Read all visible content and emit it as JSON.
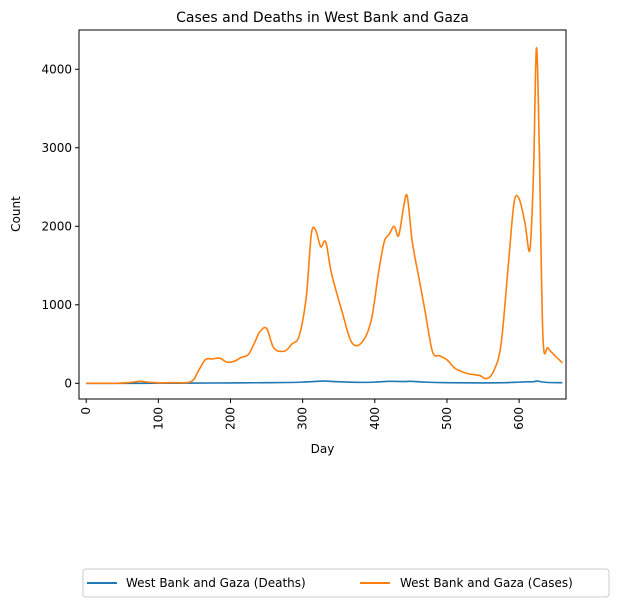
{
  "chart_data": {
    "type": "line",
    "title": "Cases and Deaths in West Bank and Gaza",
    "xlabel": "Day",
    "ylabel": "Count",
    "xlim": [
      -10,
      665
    ],
    "ylim": [
      -200,
      4500
    ],
    "xticks": [
      0,
      100,
      200,
      300,
      400,
      500,
      600
    ],
    "yticks": [
      0,
      1000,
      2000,
      3000,
      4000
    ],
    "grid": false,
    "legend": "bottom-center",
    "series": [
      {
        "name": "West Bank and Gaza (Deaths)",
        "color": "#1f77b4",
        "x": [
          0,
          50,
          100,
          150,
          200,
          250,
          280,
          300,
          320,
          330,
          350,
          375,
          400,
          420,
          440,
          450,
          470,
          500,
          550,
          580,
          600,
          610,
          620,
          625,
          630,
          640,
          660
        ],
        "y": [
          0,
          0,
          1,
          3,
          5,
          8,
          10,
          15,
          25,
          28,
          20,
          12,
          15,
          25,
          22,
          25,
          15,
          8,
          5,
          8,
          15,
          18,
          20,
          30,
          20,
          10,
          8
        ]
      },
      {
        "name": "West Bank and Gaza (Cases)",
        "color": "#ff7f0e",
        "x": [
          0,
          40,
          60,
          75,
          85,
          95,
          100,
          120,
          145,
          155,
          165,
          175,
          185,
          195,
          205,
          215,
          225,
          235,
          240,
          250,
          260,
          275,
          285,
          295,
          305,
          312,
          318,
          325,
          332,
          340,
          355,
          368,
          382,
          395,
          405,
          413,
          420,
          427,
          433,
          440,
          445,
          452,
          462,
          470,
          480,
          490,
          500,
          510,
          520,
          530,
          545,
          555,
          565,
          575,
          585,
          593,
          600,
          608,
          615,
          620,
          624,
          628,
          633,
          640,
          650,
          660
        ],
        "y": [
          0,
          0,
          10,
          25,
          15,
          10,
          5,
          8,
          20,
          150,
          300,
          310,
          320,
          270,
          280,
          330,
          370,
          550,
          650,
          700,
          450,
          410,
          500,
          600,
          1100,
          1900,
          1950,
          1740,
          1800,
          1400,
          900,
          520,
          520,
          800,
          1400,
          1800,
          1900,
          2000,
          1880,
          2250,
          2380,
          1800,
          1300,
          900,
          400,
          350,
          300,
          200,
          150,
          120,
          100,
          60,
          160,
          500,
          1500,
          2300,
          2350,
          2050,
          1700,
          2700,
          4270,
          3000,
          600,
          450,
          350,
          260
        ]
      }
    ]
  }
}
